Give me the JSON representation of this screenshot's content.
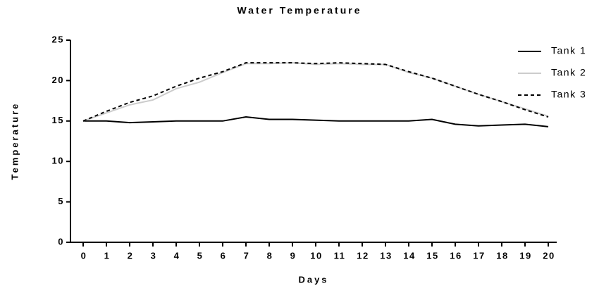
{
  "chart_data": {
    "type": "line",
    "title": "Water Temperature",
    "x_label": "Days",
    "y_label": "Temperature",
    "x": [
      0,
      1,
      2,
      3,
      4,
      5,
      6,
      7,
      8,
      9,
      10,
      11,
      12,
      13,
      14,
      15,
      16,
      17,
      18,
      19,
      20
    ],
    "series": [
      {
        "name": "Tank 1",
        "color": "#000000",
        "dashed": false,
        "values": [
          15,
          15,
          14.8,
          14.9,
          15,
          15,
          15,
          15.5,
          15.2,
          15.2,
          15.1,
          15,
          15,
          15,
          15,
          15.2,
          14.6,
          14.4,
          14.5,
          14.6,
          14.3
        ]
      },
      {
        "name": "Tank 2",
        "color": "#cccccc",
        "dashed": false,
        "values": [
          15,
          16,
          17,
          17.6,
          19,
          19.8,
          21,
          22.1,
          22.1,
          22.2,
          22,
          22.1,
          22,
          22,
          21,
          20.3,
          19.3,
          18.3,
          17.4,
          16.5,
          15.6
        ]
      },
      {
        "name": "Tank 3",
        "color": "#000000",
        "dashed": true,
        "values": [
          15,
          16.2,
          17.3,
          18.1,
          19.3,
          20.3,
          21.1,
          22.2,
          22.2,
          22.2,
          22.1,
          22.2,
          22.1,
          22,
          21.1,
          20.3,
          19.3,
          18.3,
          17.4,
          16.4,
          15.5
        ]
      }
    ],
    "xlim": [
      0,
      20
    ],
    "xticks": [
      0,
      1,
      2,
      3,
      4,
      5,
      6,
      7,
      8,
      9,
      10,
      11,
      12,
      13,
      14,
      15,
      16,
      17,
      18,
      19,
      20
    ],
    "ylim": [
      0,
      25
    ],
    "yticks": [
      0,
      5,
      10,
      15,
      20,
      25
    ],
    "grid": false,
    "legend": "top-right"
  }
}
